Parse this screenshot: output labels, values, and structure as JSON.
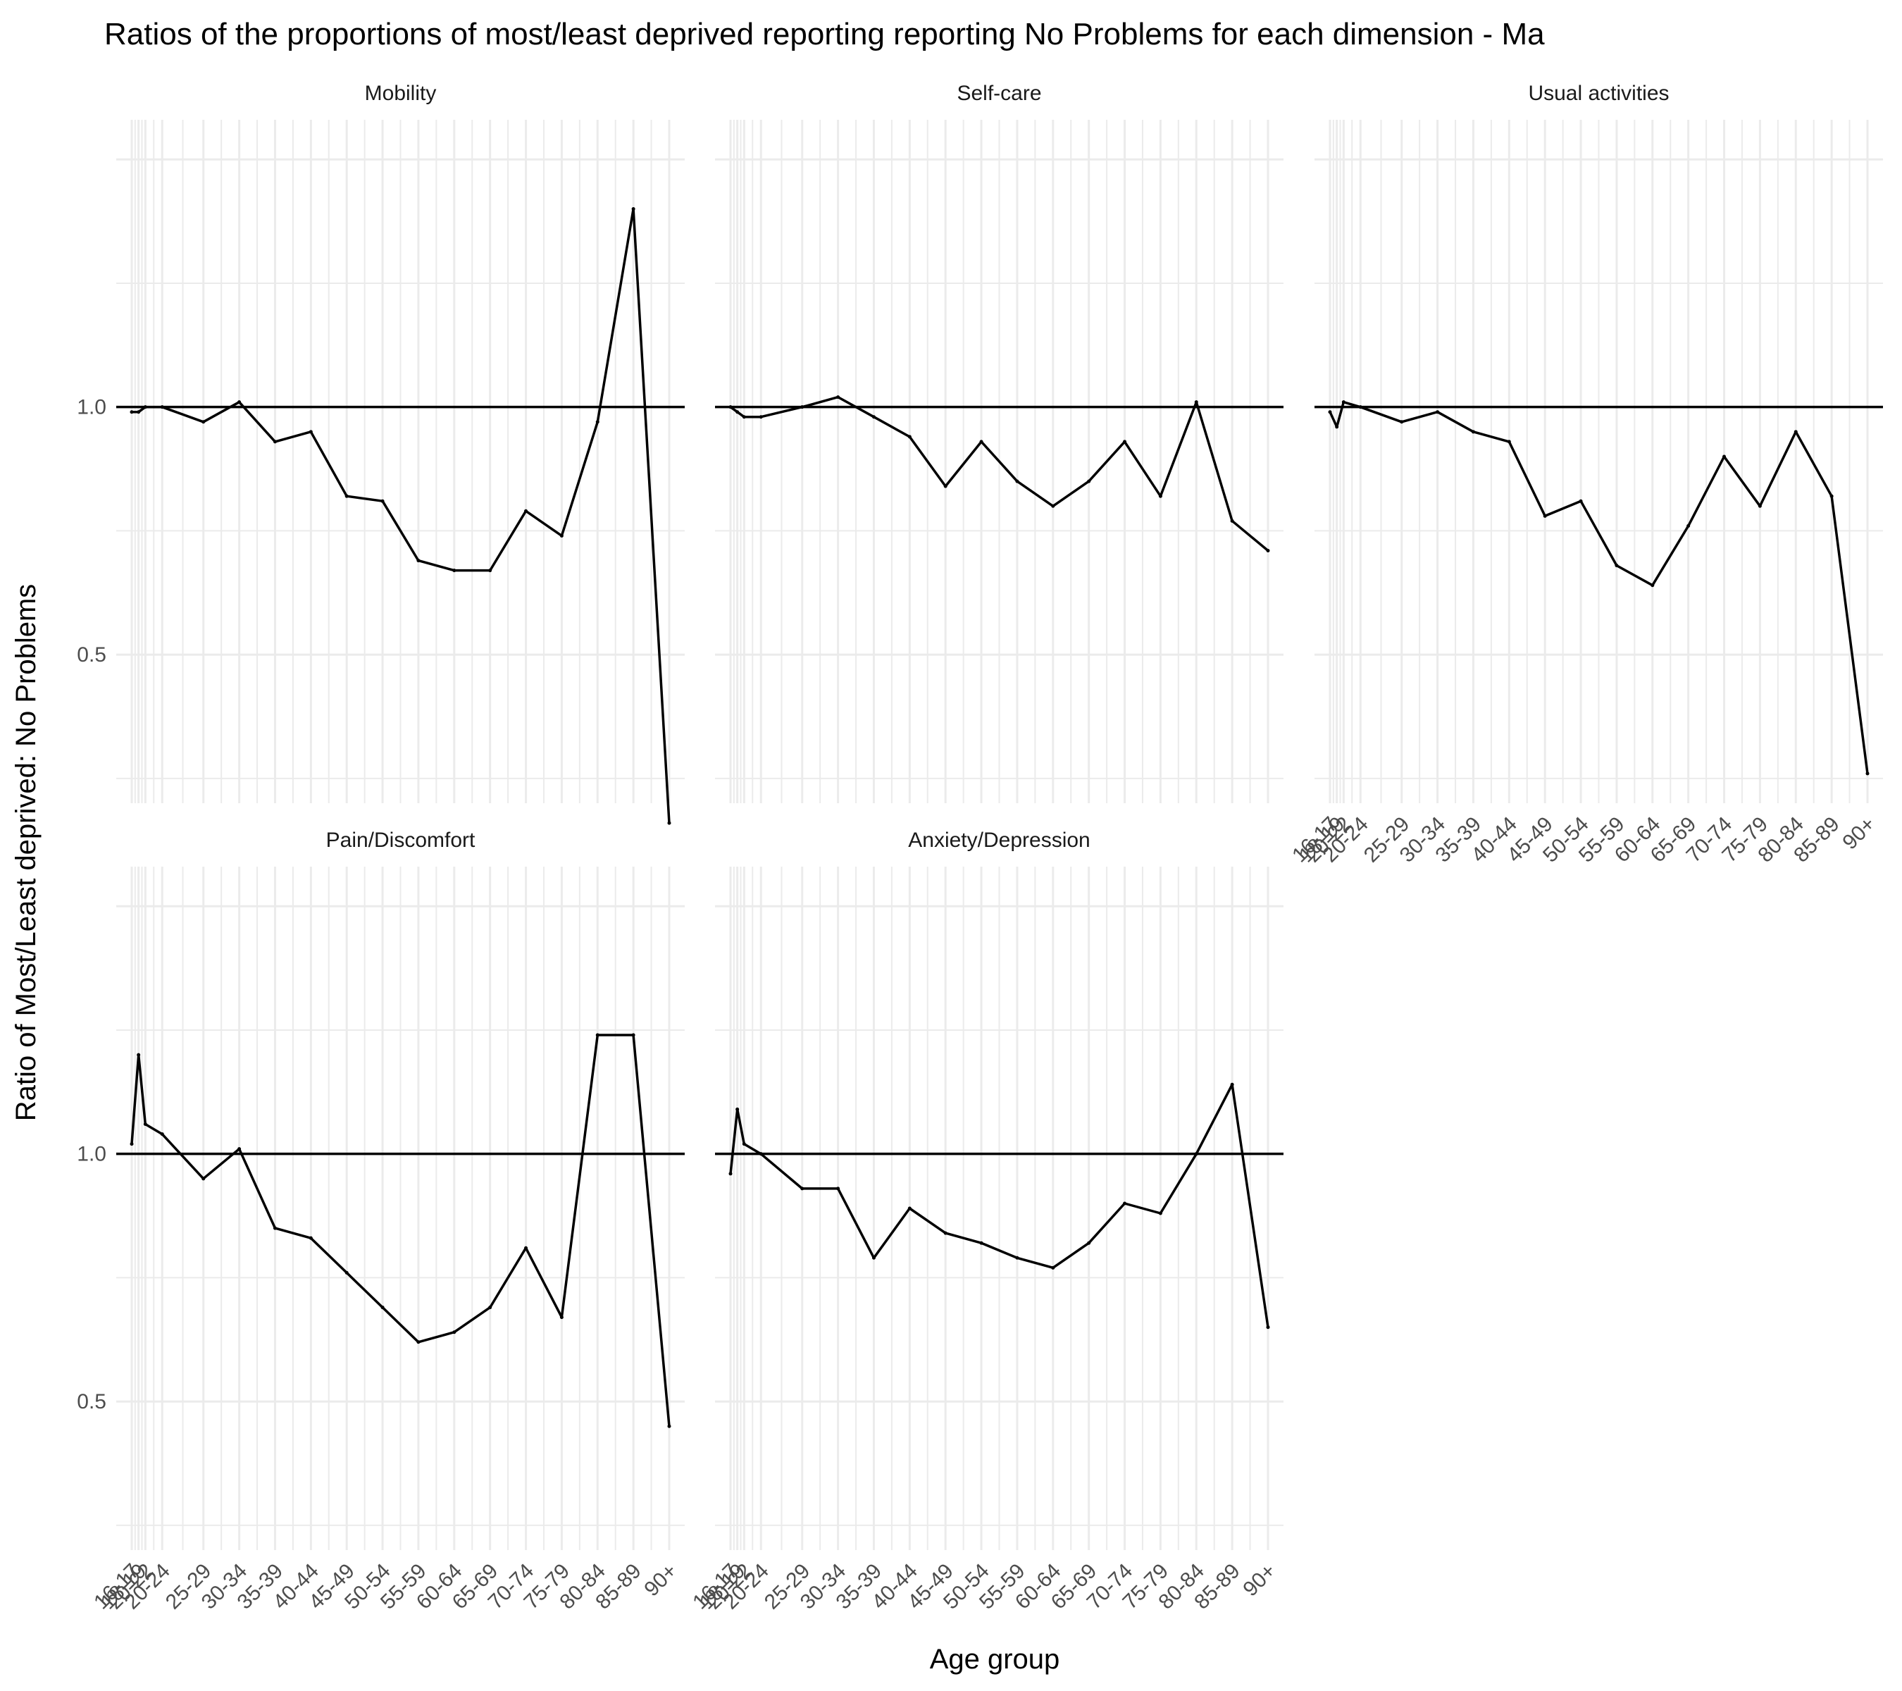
{
  "chart_data": {
    "type": "line",
    "title": "Ratios of the proportions of most/least deprived reporting reporting No Problems for each dimension - Ma",
    "xlabel": "Age group",
    "ylabel": "Ratio of Most/Least deprived: No Problems",
    "reference_line": 1.0,
    "ylim": [
      0.2,
      1.58
    ],
    "y_ticks": [
      0.5,
      1.0
    ],
    "y_tick_labels": [
      "0.5",
      "1.0"
    ],
    "x_tick_labels": [
      "16-17",
      "18-19",
      "20-22",
      "20-24",
      "25-29",
      "30-34",
      "35-39",
      "40-44",
      "45-49",
      "50-54",
      "55-59",
      "60-64",
      "65-69",
      "70-74",
      "75-79",
      "80-84",
      "85-89",
      "90+"
    ],
    "x_positions": [
      0.0,
      0.19,
      0.38,
      0.85,
      2.0,
      3.0,
      4.0,
      5.0,
      6.0,
      7.0,
      8.0,
      9.0,
      10.0,
      11.0,
      12.0,
      13.0,
      14.0,
      15.0
    ],
    "panels": [
      {
        "name": "Mobility",
        "values": [
          0.99,
          0.99,
          1.0,
          1.0,
          0.97,
          1.01,
          0.93,
          0.95,
          0.82,
          0.81,
          0.69,
          0.67,
          0.67,
          0.79,
          0.74,
          0.97,
          1.4,
          0.16
        ]
      },
      {
        "name": "Self-care",
        "values": [
          1.0,
          0.99,
          0.98,
          0.98,
          1.0,
          1.02,
          0.98,
          0.94,
          0.84,
          0.93,
          0.85,
          0.8,
          0.85,
          0.93,
          0.82,
          1.01,
          0.77,
          0.71
        ]
      },
      {
        "name": "Usual activities",
        "values": [
          0.99,
          0.96,
          1.01,
          1.0,
          0.97,
          0.99,
          0.95,
          0.93,
          0.78,
          0.81,
          0.68,
          0.64,
          0.76,
          0.9,
          0.8,
          0.95,
          0.82,
          0.26
        ]
      },
      {
        "name": "Pain/Discomfort",
        "values": [
          1.02,
          1.2,
          1.06,
          1.04,
          0.95,
          1.01,
          0.85,
          0.83,
          0.76,
          0.69,
          0.62,
          0.64,
          0.69,
          0.81,
          0.67,
          1.24,
          1.24,
          0.45
        ]
      },
      {
        "name": "Anxiety/Depression",
        "values": [
          0.96,
          1.09,
          1.02,
          1.0,
          0.93,
          0.93,
          0.79,
          0.89,
          0.84,
          0.82,
          0.79,
          0.77,
          0.82,
          0.9,
          0.88,
          1.0,
          1.14,
          0.65
        ]
      }
    ]
  }
}
